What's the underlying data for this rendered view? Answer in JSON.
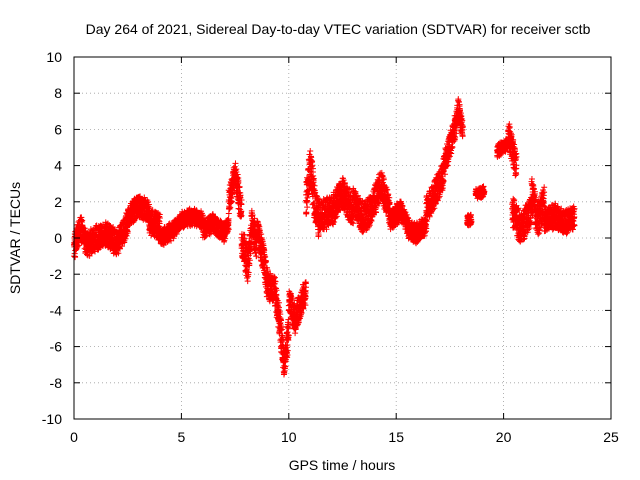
{
  "chart_data": {
    "type": "scatter",
    "title": "Day 264 of 2021, Sidereal Day-to-day VTEC variation (SDTVAR) for receiver sctb",
    "xlabel": "GPS time / hours",
    "ylabel": "SDTVAR / TECUs",
    "xlim": [
      0,
      25
    ],
    "ylim": [
      -10,
      10
    ],
    "xticks": [
      "0",
      "5",
      "10",
      "15",
      "20",
      "25"
    ],
    "yticks": [
      "-10",
      "-8",
      "-6",
      "-4",
      "-2",
      "0",
      "2",
      "4",
      "6",
      "8",
      "10"
    ],
    "grid": true,
    "marker": "+",
    "series": [
      {
        "name": "SDTVAR",
        "color": "#ff0000",
        "segments": [
          {
            "x_start": 0.0,
            "x_end": 2.5,
            "center": [
              [
                0.0,
                -0.5
              ],
              [
                0.3,
                0.6
              ],
              [
                0.6,
                -0.4
              ],
              [
                1.0,
                0.0
              ],
              [
                1.5,
                0.2
              ],
              [
                2.0,
                -0.3
              ],
              [
                2.5,
                0.8
              ]
            ],
            "spread": 1.3
          },
          {
            "x_start": 2.5,
            "x_end": 3.5,
            "center": [
              [
                2.5,
                1.2
              ],
              [
                3.0,
                1.8
              ],
              [
                3.5,
                1.4
              ]
            ],
            "spread": 1.1
          },
          {
            "x_start": 3.5,
            "x_end": 4.0,
            "center": [
              [
                3.5,
                1.0
              ],
              [
                4.0,
                0.6
              ]
            ],
            "spread": 1.4
          },
          {
            "x_start": 4.0,
            "x_end": 6.0,
            "center": [
              [
                4.0,
                0.0
              ],
              [
                4.6,
                0.4
              ],
              [
                5.0,
                1.0
              ],
              [
                5.5,
                1.2
              ],
              [
                6.0,
                1.0
              ]
            ],
            "spread": 0.8
          },
          {
            "x_start": 6.0,
            "x_end": 7.2,
            "center": [
              [
                6.0,
                0.5
              ],
              [
                6.5,
                0.8
              ],
              [
                7.0,
                0.3
              ],
              [
                7.2,
                0.8
              ]
            ],
            "spread": 0.9
          },
          {
            "x_start": 7.2,
            "x_end": 7.8,
            "center": [
              [
                7.2,
                2.0
              ],
              [
                7.5,
                3.5
              ],
              [
                7.8,
                1.5
              ]
            ],
            "spread": 1.5
          },
          {
            "x_start": 7.8,
            "x_end": 8.5,
            "center": [
              [
                7.8,
                0.0
              ],
              [
                8.1,
                -1.5
              ],
              [
                8.3,
                1.0
              ],
              [
                8.5,
                -0.5
              ]
            ],
            "spread": 1.8
          },
          {
            "x_start": 8.5,
            "x_end": 9.3,
            "center": [
              [
                8.5,
                0.5
              ],
              [
                8.8,
                -1.0
              ],
              [
                9.0,
                -2.5
              ],
              [
                9.3,
                -3.0
              ]
            ],
            "spread": 1.6
          },
          {
            "x_start": 9.3,
            "x_end": 10.0,
            "center": [
              [
                9.3,
                -2.5
              ],
              [
                9.6,
                -5.0
              ],
              [
                9.8,
                -7.0
              ],
              [
                10.0,
                -5.0
              ]
            ],
            "spread": 1.6
          },
          {
            "x_start": 10.0,
            "x_end": 10.8,
            "center": [
              [
                10.0,
                -3.5
              ],
              [
                10.3,
                -4.5
              ],
              [
                10.6,
                -3.5
              ],
              [
                10.8,
                -3.0
              ]
            ],
            "spread": 1.4
          },
          {
            "x_start": 10.8,
            "x_end": 11.4,
            "center": [
              [
                10.8,
                2.0
              ],
              [
                11.0,
                4.0
              ],
              [
                11.2,
                2.0
              ],
              [
                11.4,
                1.0
              ]
            ],
            "spread": 2.0
          },
          {
            "x_start": 11.4,
            "x_end": 13.0,
            "center": [
              [
                11.4,
                1.2
              ],
              [
                12.0,
                1.5
              ],
              [
                12.5,
                2.5
              ],
              [
                13.0,
                1.5
              ]
            ],
            "spread": 1.6
          },
          {
            "x_start": 13.0,
            "x_end": 14.7,
            "center": [
              [
                13.0,
                2.0
              ],
              [
                13.5,
                1.0
              ],
              [
                14.0,
                2.0
              ],
              [
                14.3,
                3.0
              ],
              [
                14.7,
                1.5
              ]
            ],
            "spread": 1.6
          },
          {
            "x_start": 14.7,
            "x_end": 16.4,
            "center": [
              [
                14.7,
                1.0
              ],
              [
                15.2,
                1.5
              ],
              [
                15.6,
                0.5
              ],
              [
                16.0,
                0.2
              ],
              [
                16.4,
                0.8
              ]
            ],
            "spread": 1.0
          },
          {
            "x_start": 16.4,
            "x_end": 17.2,
            "center": [
              [
                16.4,
                1.5
              ],
              [
                16.8,
                2.5
              ],
              [
                17.2,
                3.5
              ]
            ],
            "spread": 1.4
          },
          {
            "x_start": 17.2,
            "x_end": 18.1,
            "center": [
              [
                17.2,
                4.0
              ],
              [
                17.6,
                5.5
              ],
              [
                17.9,
                7.0
              ],
              [
                18.1,
                6.0
              ]
            ],
            "spread": 1.3
          },
          {
            "x_start": 18.3,
            "x_end": 18.5,
            "center": [
              [
                18.3,
                1.0
              ],
              [
                18.5,
                1.0
              ]
            ],
            "spread": 0.6
          },
          {
            "x_start": 18.7,
            "x_end": 19.1,
            "center": [
              [
                18.7,
                2.4
              ],
              [
                19.1,
                2.6
              ]
            ],
            "spread": 0.4
          },
          {
            "x_start": 19.7,
            "x_end": 20.2,
            "center": [
              [
                19.7,
                4.8
              ],
              [
                20.2,
                5.2
              ]
            ],
            "spread": 0.5
          },
          {
            "x_start": 20.2,
            "x_end": 20.6,
            "center": [
              [
                20.2,
                5.8
              ],
              [
                20.6,
                4.0
              ]
            ],
            "spread": 1.4
          },
          {
            "x_start": 20.4,
            "x_end": 21.3,
            "center": [
              [
                20.4,
                1.5
              ],
              [
                20.8,
                0.5
              ],
              [
                21.3,
                1.5
              ]
            ],
            "spread": 1.6
          },
          {
            "x_start": 21.3,
            "x_end": 21.9,
            "center": [
              [
                21.3,
                2.5
              ],
              [
                21.6,
                1.0
              ],
              [
                21.9,
                2.0
              ]
            ],
            "spread": 1.8
          },
          {
            "x_start": 21.9,
            "x_end": 23.3,
            "center": [
              [
                21.9,
                1.0
              ],
              [
                22.4,
                1.2
              ],
              [
                22.8,
                0.8
              ],
              [
                23.3,
                1.2
              ]
            ],
            "spread": 1.2
          }
        ]
      }
    ]
  }
}
